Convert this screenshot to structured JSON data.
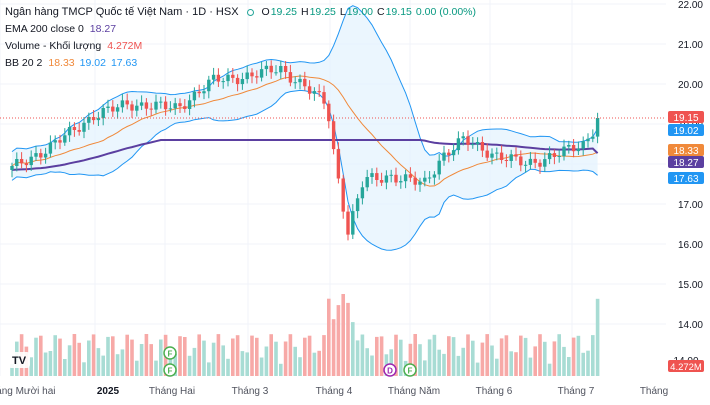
{
  "header": {
    "title": "Ngân hàng TMCP Quốc tế Việt Nam · 1D · HSX",
    "ohlc": {
      "o_label": "O",
      "o": "19.25",
      "h_label": "H",
      "h": "19.25",
      "l_label": "L",
      "l": "19.00",
      "c_label": "C",
      "c": "19.15",
      "change": "0.00 (0.00%)"
    },
    "ema_label": "EMA 200 close 0",
    "ema_value": "18.27",
    "volume_label": "Volume - Khối lượng",
    "volume_value": "4.272M",
    "bb_label": "BB 20 2",
    "bb_basis": "18.33",
    "bb_upper": "19.02",
    "bb_lower": "17.63"
  },
  "colors": {
    "up": "#26a69a",
    "down": "#ef5350",
    "vol_up": "#a8dcd4",
    "vol_down": "#f7a9a7",
    "ema": "#5b3fa0",
    "bb_basis": "#f0893a",
    "bb_band": "#2196f3",
    "bb_fill": "#e3f2fd",
    "price_line": "#ef5350",
    "grid": "#f0f3fa"
  },
  "logo_text": "TV",
  "price_axis": {
    "ticks": [
      "22.00",
      "21.00",
      "20.00",
      "19.00",
      "18.00",
      "17.00",
      "16.00",
      "15.00",
      "14.00"
    ]
  },
  "time_axis": {
    "labels": [
      "Tháng Mười hai",
      "2025",
      "Tháng Hai",
      "Tháng 3",
      "Tháng 4",
      "Tháng Năm",
      "Tháng 6",
      "Tháng 7",
      "Tháng"
    ]
  },
  "price_tags": {
    "last": "19.15",
    "bb_upper": "19.02",
    "bb_basis": "18.33",
    "ema": "18.27",
    "bb_lower": "17.63",
    "volume": "4.272M",
    "volume_partial": "14.00"
  },
  "events": [
    {
      "type": "earnings",
      "letter": "F"
    },
    {
      "type": "earnings",
      "letter": "F"
    },
    {
      "type": "dividend",
      "letter": "D"
    },
    {
      "type": "earnings",
      "letter": "F"
    }
  ],
  "chart_data": {
    "type": "candlestick",
    "title": "Ngân hàng TMCP Quốc tế Việt Nam · 1D · HSX",
    "ylim": [
      13.0,
      22.0
    ],
    "last_close": 19.15,
    "indicators": {
      "ema200": 18.27,
      "bb_basis": 18.33,
      "bb_upper": 19.02,
      "bb_lower": 17.63,
      "volume": "4.272M"
    },
    "key_points": [
      {
        "date": "2024-12-02",
        "close": 17.9
      },
      {
        "date": "2024-12-16",
        "close": 18.4
      },
      {
        "date": "2025-01-02",
        "close": 19.2
      },
      {
        "date": "2025-01-15",
        "close": 19.5
      },
      {
        "date": "2025-02-03",
        "close": 19.4
      },
      {
        "date": "2025-02-17",
        "close": 20.1
      },
      {
        "date": "2025-03-03",
        "close": 20.2
      },
      {
        "date": "2025-03-14",
        "close": 20.4
      },
      {
        "date": "2025-03-24",
        "close": 19.9
      },
      {
        "date": "2025-04-01",
        "close": 19.5
      },
      {
        "date": "2025-04-04",
        "close": 18.1
      },
      {
        "date": "2025-04-09",
        "close": 16.3
      },
      {
        "date": "2025-04-15",
        "close": 17.6
      },
      {
        "date": "2025-04-25",
        "close": 17.7
      },
      {
        "date": "2025-05-08",
        "close": 17.5
      },
      {
        "date": "2025-05-15",
        "close": 18.2
      },
      {
        "date": "2025-05-23",
        "close": 18.6
      },
      {
        "date": "2025-06-05",
        "close": 18.2
      },
      {
        "date": "2025-06-16",
        "close": 18.0
      },
      {
        "date": "2025-06-26",
        "close": 18.2
      },
      {
        "date": "2025-07-08",
        "close": 18.5
      },
      {
        "date": "2025-07-14",
        "close": 19.15
      }
    ]
  }
}
